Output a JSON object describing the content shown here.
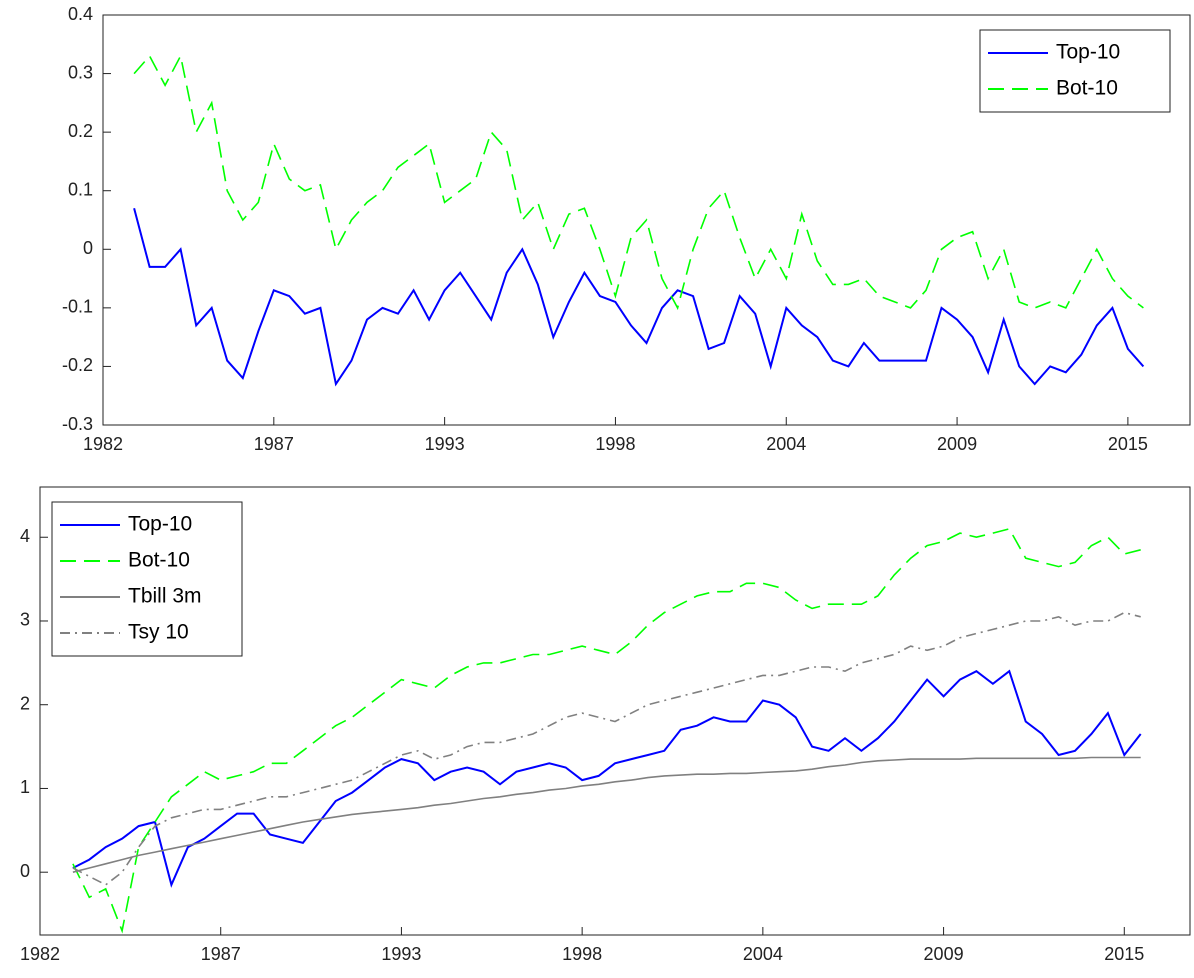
{
  "chart_data": [
    {
      "type": "line",
      "x": [
        1983,
        1983.5,
        1984,
        1984.5,
        1985,
        1985.5,
        1986,
        1986.5,
        1987,
        1987.5,
        1988,
        1988.5,
        1989,
        1989.5,
        1990,
        1990.5,
        1991,
        1991.5,
        1992,
        1992.5,
        1993,
        1993.5,
        1994,
        1994.5,
        1995,
        1995.5,
        1996,
        1996.5,
        1997,
        1997.5,
        1998,
        1998.5,
        1999,
        1999.5,
        2000,
        2000.5,
        2001,
        2001.5,
        2002,
        2002.5,
        2003,
        2003.5,
        2004,
        2004.5,
        2005,
        2005.5,
        2006,
        2006.5,
        2007,
        2007.5,
        2008,
        2008.5,
        2009,
        2009.5,
        2010,
        2010.5,
        2011,
        2011.5,
        2012,
        2012.5,
        2013,
        2013.5,
        2014,
        2014.5,
        2015,
        2015.5
      ],
      "series": [
        {
          "name": "Top-10",
          "color": "#0000ff",
          "style": "solid",
          "values": [
            0.07,
            -0.03,
            -0.03,
            0.0,
            -0.13,
            -0.1,
            -0.19,
            -0.22,
            -0.14,
            -0.07,
            -0.08,
            -0.11,
            -0.1,
            -0.23,
            -0.19,
            -0.12,
            -0.1,
            -0.11,
            -0.07,
            -0.12,
            -0.07,
            -0.04,
            -0.08,
            -0.12,
            -0.04,
            0.0,
            -0.06,
            -0.15,
            -0.09,
            -0.04,
            -0.08,
            -0.09,
            -0.13,
            -0.16,
            -0.1,
            -0.07,
            -0.08,
            -0.17,
            -0.16,
            -0.08,
            -0.11,
            -0.2,
            -0.1,
            -0.13,
            -0.15,
            -0.19,
            -0.2,
            -0.16,
            -0.19,
            -0.19,
            -0.19,
            -0.19,
            -0.1,
            -0.12,
            -0.15,
            -0.21,
            -0.12,
            -0.2,
            -0.23,
            -0.2,
            -0.21,
            -0.18,
            -0.13,
            -0.1,
            -0.17,
            -0.2
          ]
        },
        {
          "name": "Bot-10",
          "color": "#00ff00",
          "style": "dashed",
          "values": [
            0.3,
            0.33,
            0.28,
            0.33,
            0.2,
            0.25,
            0.1,
            0.05,
            0.08,
            0.18,
            0.12,
            0.1,
            0.11,
            0.0,
            0.05,
            0.08,
            0.1,
            0.14,
            0.16,
            0.18,
            0.08,
            0.1,
            0.12,
            0.2,
            0.17,
            0.05,
            0.08,
            0.0,
            0.06,
            0.07,
            0.0,
            -0.08,
            0.02,
            0.05,
            -0.05,
            -0.1,
            0.0,
            0.07,
            0.1,
            0.02,
            -0.05,
            0.0,
            -0.05,
            0.06,
            -0.02,
            -0.06,
            -0.06,
            -0.05,
            -0.08,
            -0.09,
            -0.1,
            -0.07,
            0.0,
            0.02,
            0.03,
            -0.05,
            0.0,
            -0.09,
            -0.1,
            -0.09,
            -0.1,
            -0.05,
            0.0,
            -0.05,
            -0.08,
            -0.1
          ]
        }
      ],
      "xlim": [
        1982,
        2017
      ],
      "xticks": [
        {
          "value": 1982,
          "label": "1982"
        },
        {
          "value": 1987.5,
          "label": "1987"
        },
        {
          "value": 1993,
          "label": "1993"
        },
        {
          "value": 1998.5,
          "label": "1998"
        },
        {
          "value": 2004,
          "label": "2004"
        },
        {
          "value": 2009.5,
          "label": "2009"
        },
        {
          "value": 2015,
          "label": "2015"
        }
      ],
      "ylim": [
        -0.3,
        0.4
      ],
      "yticks": [
        -0.3,
        -0.2,
        -0.1,
        0,
        0.1,
        0.2,
        0.3,
        0.4
      ],
      "legend": "upper right"
    },
    {
      "type": "line",
      "x": [
        1983,
        1983.5,
        1984,
        1984.5,
        1985,
        1985.5,
        1986,
        1986.5,
        1987,
        1987.5,
        1988,
        1988.5,
        1989,
        1989.5,
        1990,
        1990.5,
        1991,
        1991.5,
        1992,
        1992.5,
        1993,
        1993.5,
        1994,
        1994.5,
        1995,
        1995.5,
        1996,
        1996.5,
        1997,
        1997.5,
        1998,
        1998.5,
        1999,
        1999.5,
        2000,
        2000.5,
        2001,
        2001.5,
        2002,
        2002.5,
        2003,
        2003.5,
        2004,
        2004.5,
        2005,
        2005.5,
        2006,
        2006.5,
        2007,
        2007.5,
        2008,
        2008.5,
        2009,
        2009.5,
        2010,
        2010.5,
        2011,
        2011.5,
        2012,
        2012.5,
        2013,
        2013.5,
        2014,
        2014.5,
        2015,
        2015.5
      ],
      "series": [
        {
          "name": "Top-10",
          "color": "#0000ff",
          "style": "solid",
          "values": [
            0.05,
            0.15,
            0.3,
            0.4,
            0.55,
            0.6,
            -0.15,
            0.3,
            0.4,
            0.55,
            0.7,
            0.7,
            0.45,
            0.4,
            0.35,
            0.6,
            0.85,
            0.95,
            1.1,
            1.25,
            1.35,
            1.3,
            1.1,
            1.2,
            1.25,
            1.2,
            1.05,
            1.2,
            1.25,
            1.3,
            1.25,
            1.1,
            1.15,
            1.3,
            1.35,
            1.4,
            1.45,
            1.7,
            1.75,
            1.85,
            1.8,
            1.8,
            2.05,
            2.0,
            1.85,
            1.5,
            1.45,
            1.6,
            1.45,
            1.6,
            1.8,
            2.05,
            2.3,
            2.1,
            2.3,
            2.4,
            2.25,
            2.4,
            1.8,
            1.65,
            1.4,
            1.45,
            1.65,
            1.9,
            1.4,
            1.65
          ]
        },
        {
          "name": "Bot-10",
          "color": "#00ff00",
          "style": "dashed",
          "values": [
            0.1,
            -0.3,
            -0.2,
            -0.7,
            0.3,
            0.6,
            0.9,
            1.05,
            1.2,
            1.1,
            1.15,
            1.2,
            1.3,
            1.3,
            1.45,
            1.6,
            1.75,
            1.85,
            2.0,
            2.15,
            2.3,
            2.25,
            2.2,
            2.35,
            2.45,
            2.5,
            2.5,
            2.55,
            2.6,
            2.6,
            2.65,
            2.7,
            2.65,
            2.6,
            2.75,
            2.95,
            3.1,
            3.2,
            3.3,
            3.35,
            3.35,
            3.45,
            3.45,
            3.4,
            3.25,
            3.15,
            3.2,
            3.2,
            3.2,
            3.3,
            3.55,
            3.75,
            3.9,
            3.95,
            4.05,
            4.0,
            4.05,
            4.1,
            3.75,
            3.7,
            3.65,
            3.7,
            3.9,
            4.0,
            3.8,
            3.85
          ]
        },
        {
          "name": "Tbill 3m",
          "color": "#808080",
          "style": "solid",
          "values": [
            0.0,
            0.05,
            0.1,
            0.15,
            0.2,
            0.24,
            0.28,
            0.32,
            0.36,
            0.4,
            0.44,
            0.48,
            0.52,
            0.56,
            0.6,
            0.63,
            0.66,
            0.69,
            0.71,
            0.73,
            0.75,
            0.77,
            0.8,
            0.82,
            0.85,
            0.88,
            0.9,
            0.93,
            0.95,
            0.98,
            1.0,
            1.03,
            1.05,
            1.08,
            1.1,
            1.13,
            1.15,
            1.16,
            1.17,
            1.17,
            1.18,
            1.18,
            1.19,
            1.2,
            1.21,
            1.23,
            1.26,
            1.28,
            1.31,
            1.33,
            1.34,
            1.35,
            1.35,
            1.35,
            1.35,
            1.36,
            1.36,
            1.36,
            1.36,
            1.36,
            1.36,
            1.36,
            1.37,
            1.37,
            1.37,
            1.37
          ]
        },
        {
          "name": "Tsy 10",
          "color": "#808080",
          "style": "dash-dot",
          "values": [
            0.05,
            -0.05,
            -0.15,
            0.0,
            0.3,
            0.55,
            0.65,
            0.7,
            0.75,
            0.75,
            0.8,
            0.85,
            0.9,
            0.9,
            0.95,
            1.0,
            1.05,
            1.1,
            1.2,
            1.3,
            1.4,
            1.45,
            1.35,
            1.4,
            1.5,
            1.55,
            1.55,
            1.6,
            1.65,
            1.75,
            1.85,
            1.9,
            1.85,
            1.8,
            1.9,
            2.0,
            2.05,
            2.1,
            2.15,
            2.2,
            2.25,
            2.3,
            2.35,
            2.35,
            2.4,
            2.45,
            2.45,
            2.4,
            2.5,
            2.55,
            2.6,
            2.7,
            2.65,
            2.7,
            2.8,
            2.85,
            2.9,
            2.95,
            3.0,
            3.0,
            3.05,
            2.95,
            3.0,
            3.0,
            3.1,
            3.05
          ]
        }
      ],
      "xlim": [
        1982,
        2017
      ],
      "xticks": [
        {
          "value": 1982,
          "label": "1982"
        },
        {
          "value": 1987.5,
          "label": "1987"
        },
        {
          "value": 1993,
          "label": "1993"
        },
        {
          "value": 1998.5,
          "label": "1998"
        },
        {
          "value": 2004,
          "label": "2004"
        },
        {
          "value": 2009.5,
          "label": "2009"
        },
        {
          "value": 2015,
          "label": "2015"
        }
      ],
      "ylim": [
        -0.75,
        4.6
      ],
      "yticks": [
        0,
        1,
        2,
        3,
        4
      ],
      "legend": "upper left"
    }
  ]
}
